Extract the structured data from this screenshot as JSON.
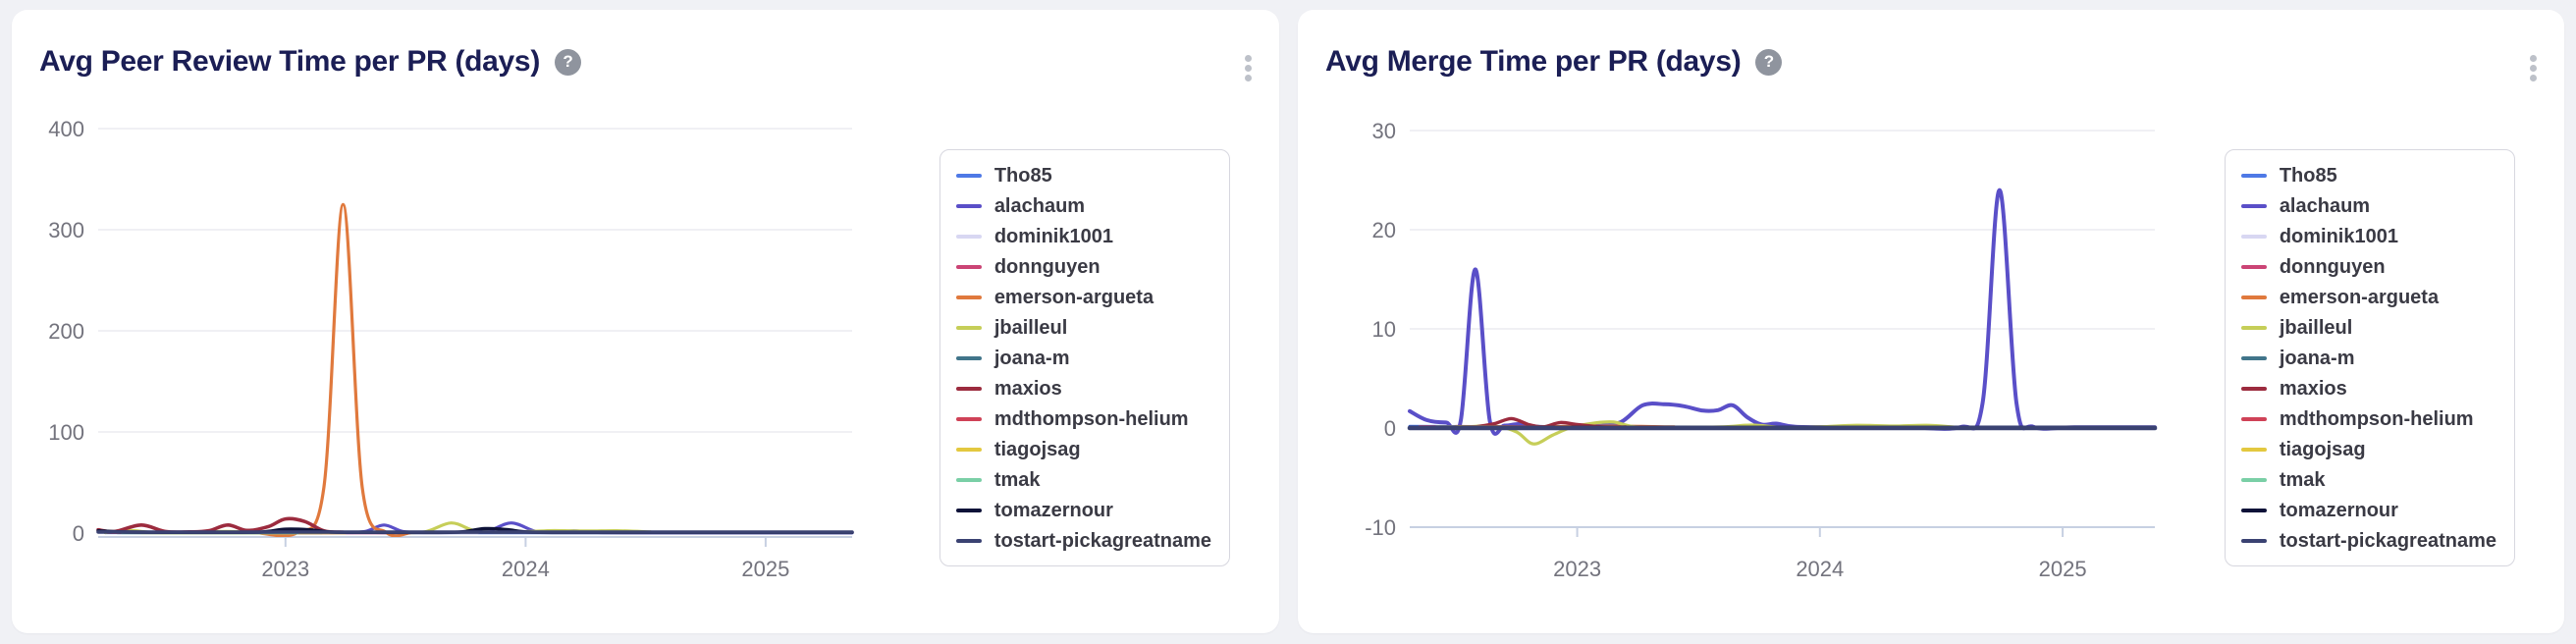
{
  "page": {
    "background": "#f0f1f5",
    "card_background": "#ffffff",
    "title_color": "#1b1e55"
  },
  "cards": [
    {
      "title": "Avg Peer Review Time per PR (days)",
      "help_label": "?",
      "icons": {
        "help": "question-circle-icon",
        "menu": "kebab-menu-icon"
      }
    },
    {
      "title": "Avg Merge Time per PR (days)",
      "help_label": "?",
      "icons": {
        "help": "question-circle-icon",
        "menu": "kebab-menu-icon"
      }
    }
  ],
  "chart_data": [
    {
      "type": "line",
      "title": "Avg Peer Review Time per PR (days)",
      "xlabel": "",
      "ylabel": "",
      "grid": true,
      "legend_position": "right",
      "x_ticks": [
        "2023",
        "2024",
        "2025"
      ],
      "x_tick_values": [
        2023,
        2024,
        2025
      ],
      "x_range": [
        2022.22,
        2025.36
      ],
      "y_ticks": [
        0,
        100,
        200,
        300,
        400
      ],
      "y_range": [
        0,
        400
      ],
      "series": [
        {
          "name": "Tho85",
          "color": "#4e79e6",
          "width": 3,
          "points": [
            [
              2022.25,
              0.4
            ],
            [
              2022.7,
              0.3
            ],
            [
              2023.2,
              0.3
            ],
            [
              2023.7,
              0.25
            ],
            [
              2024.2,
              0.25
            ],
            [
              2024.8,
              0.25
            ],
            [
              2025.36,
              0.25
            ]
          ]
        },
        {
          "name": "alachaum",
          "color": "#5a4fc8",
          "width": 3.2,
          "points": [
            [
              2022.25,
              0.6
            ],
            [
              2022.6,
              0.45
            ],
            [
              2022.95,
              0.5
            ],
            [
              2023.22,
              0.45
            ],
            [
              2023.33,
              1.5
            ],
            [
              2023.41,
              8
            ],
            [
              2023.49,
              1.5
            ],
            [
              2023.58,
              0.5
            ],
            [
              2023.72,
              0.6
            ],
            [
              2023.84,
              1.8
            ],
            [
              2023.94,
              10
            ],
            [
              2024.04,
              1.8
            ],
            [
              2024.12,
              0.8
            ],
            [
              2024.2,
              2.2
            ],
            [
              2024.3,
              0.6
            ],
            [
              2024.6,
              0.35
            ],
            [
              2025.0,
              0.35
            ],
            [
              2025.36,
              0.35
            ]
          ]
        },
        {
          "name": "dominik1001",
          "color": "#d8d7f2",
          "width": 3,
          "points": [
            [
              2022.3,
              0.35
            ],
            [
              2022.8,
              0.3
            ],
            [
              2023.3,
              0.25
            ],
            [
              2023.8,
              0.25
            ]
          ]
        },
        {
          "name": "donnguyen",
          "color": "#cb4475",
          "width": 3,
          "points": [
            [
              2022.28,
              0.45
            ],
            [
              2022.7,
              0.35
            ],
            [
              2023.1,
              0.3
            ],
            [
              2023.45,
              0.3
            ]
          ]
        },
        {
          "name": "emerson-argueta",
          "color": "#e0793d",
          "width": 3.2,
          "points": [
            [
              2022.88,
              0.4
            ],
            [
              2023.05,
              0.6
            ],
            [
              2023.16,
              45
            ],
            [
              2023.24,
              325
            ],
            [
              2023.32,
              45
            ],
            [
              2023.42,
              0.6
            ],
            [
              2023.52,
              0.4
            ]
          ]
        },
        {
          "name": "jbailleul",
          "color": "#c6ce58",
          "width": 3.2,
          "points": [
            [
              2022.25,
              0.5
            ],
            [
              2022.35,
              2.5
            ],
            [
              2022.45,
              0.6
            ],
            [
              2022.6,
              0.5
            ],
            [
              2022.75,
              1.6
            ],
            [
              2022.9,
              0.6
            ],
            [
              2023.03,
              3.5
            ],
            [
              2023.13,
              1.2
            ],
            [
              2023.28,
              0.8
            ],
            [
              2023.45,
              0.9
            ],
            [
              2023.58,
              1.2
            ],
            [
              2023.69,
              10
            ],
            [
              2023.79,
              2.2
            ],
            [
              2023.9,
              0.9
            ],
            [
              2024.02,
              1.6
            ],
            [
              2024.12,
              2.4
            ],
            [
              2024.25,
              2.0
            ],
            [
              2024.38,
              2.3
            ],
            [
              2024.52,
              1.2
            ]
          ]
        },
        {
          "name": "joana-m",
          "color": "#41758a",
          "width": 3,
          "points": [
            [
              2022.3,
              0.35
            ],
            [
              2022.75,
              0.3
            ],
            [
              2023.15,
              0.28
            ]
          ]
        },
        {
          "name": "maxios",
          "color": "#9c2b3e",
          "width": 3.6,
          "points": [
            [
              2022.22,
              3.2
            ],
            [
              2022.29,
              1.6
            ],
            [
              2022.4,
              8
            ],
            [
              2022.5,
              1.6
            ],
            [
              2022.6,
              1.2
            ],
            [
              2022.68,
              2.2
            ],
            [
              2022.76,
              8
            ],
            [
              2022.84,
              2.6
            ],
            [
              2022.93,
              6.5
            ],
            [
              2023.0,
              14
            ],
            [
              2023.08,
              11.5
            ],
            [
              2023.16,
              2.2
            ],
            [
              2023.24,
              0.8
            ]
          ]
        },
        {
          "name": "mdthompson-helium",
          "color": "#cf4257",
          "width": 3,
          "points": [
            [
              2022.26,
              0.7
            ],
            [
              2022.55,
              0.45
            ],
            [
              2022.9,
              0.4
            ],
            [
              2023.2,
              0.35
            ]
          ]
        },
        {
          "name": "tiagojsag",
          "color": "#e3c83f",
          "width": 3,
          "points": [
            [
              2022.4,
              0.35
            ],
            [
              2022.85,
              0.3
            ],
            [
              2023.25,
              0.25
            ]
          ]
        },
        {
          "name": "tmak",
          "color": "#7acfa6",
          "width": 3,
          "points": [
            [
              2022.32,
              0.35
            ],
            [
              2022.7,
              0.3
            ],
            [
              2023.05,
              0.25
            ]
          ]
        },
        {
          "name": "tomazernour",
          "color": "#0e1238",
          "width": 3.4,
          "points": [
            [
              2022.22,
              2.2
            ],
            [
              2022.33,
              1.0
            ],
            [
              2022.5,
              0.7
            ],
            [
              2022.72,
              0.7
            ],
            [
              2022.9,
              1.1
            ],
            [
              2023.0,
              3.8
            ],
            [
              2023.1,
              3.2
            ],
            [
              2023.2,
              0.9
            ],
            [
              2023.35,
              0.65
            ],
            [
              2023.55,
              0.6
            ],
            [
              2023.72,
              0.9
            ],
            [
              2023.83,
              4.4
            ],
            [
              2023.92,
              3.4
            ],
            [
              2024.02,
              0.9
            ],
            [
              2024.2,
              0.6
            ],
            [
              2024.5,
              0.6
            ],
            [
              2024.9,
              0.6
            ],
            [
              2025.36,
              0.6
            ]
          ]
        },
        {
          "name": "tostart-pickagreatname",
          "color": "#3a4272",
          "width": 3.6,
          "points": [
            [
              2022.22,
              1.1
            ],
            [
              2022.6,
              0.9
            ],
            [
              2023.0,
              1.0
            ],
            [
              2023.5,
              0.9
            ],
            [
              2024.0,
              0.9
            ],
            [
              2024.5,
              0.9
            ],
            [
              2025.0,
              0.9
            ],
            [
              2025.36,
              0.9
            ]
          ]
        }
      ]
    },
    {
      "type": "line",
      "title": "Avg Merge Time per PR (days)",
      "xlabel": "",
      "ylabel": "",
      "grid": true,
      "legend_position": "right",
      "x_ticks": [
        "2023",
        "2024",
        "2025"
      ],
      "x_tick_values": [
        2023,
        2024,
        2025
      ],
      "x_range": [
        2022.31,
        2025.38
      ],
      "y_ticks": [
        -10,
        0,
        10,
        20,
        30
      ],
      "y_range": [
        -10,
        30
      ],
      "series": [
        {
          "name": "Tho85",
          "color": "#4e79e6",
          "width": 3,
          "points": [
            [
              2022.31,
              0.18
            ],
            [
              2022.9,
              0.12
            ],
            [
              2023.5,
              0.1
            ],
            [
              2024.2,
              0.1
            ],
            [
              2025.38,
              0.1
            ]
          ]
        },
        {
          "name": "alachaum",
          "color": "#5a4fc8",
          "width": 4,
          "points": [
            [
              2022.31,
              1.7
            ],
            [
              2022.38,
              0.8
            ],
            [
              2022.46,
              0.55
            ],
            [
              2022.52,
              0.7
            ],
            [
              2022.58,
              16
            ],
            [
              2022.64,
              0.7
            ],
            [
              2022.7,
              0.25
            ],
            [
              2022.76,
              0.4
            ],
            [
              2022.84,
              0.12
            ],
            [
              2022.95,
              0.1
            ],
            [
              2023.08,
              0.2
            ],
            [
              2023.18,
              0.6
            ],
            [
              2023.27,
              2.3
            ],
            [
              2023.36,
              2.4
            ],
            [
              2023.44,
              2.2
            ],
            [
              2023.52,
              1.75
            ],
            [
              2023.58,
              1.8
            ],
            [
              2023.64,
              2.3
            ],
            [
              2023.7,
              1.1
            ],
            [
              2023.76,
              0.35
            ],
            [
              2023.82,
              0.45
            ],
            [
              2023.9,
              0.12
            ],
            [
              2024.1,
              0.08
            ],
            [
              2024.35,
              0.08
            ],
            [
              2024.58,
              0.1
            ],
            [
              2024.67,
              2.5
            ],
            [
              2024.74,
              24
            ],
            [
              2024.81,
              2.5
            ],
            [
              2024.88,
              0.12
            ],
            [
              2025.05,
              0.08
            ],
            [
              2025.38,
              0.08
            ]
          ]
        },
        {
          "name": "dominik1001",
          "color": "#d8d7f2",
          "width": 3,
          "points": [
            [
              2022.35,
              0.12
            ],
            [
              2022.9,
              0.1
            ],
            [
              2023.4,
              0.08
            ]
          ]
        },
        {
          "name": "donnguyen",
          "color": "#cb4475",
          "width": 3,
          "points": [
            [
              2022.35,
              0.14
            ],
            [
              2022.85,
              0.1
            ],
            [
              2023.3,
              0.1
            ]
          ]
        },
        {
          "name": "emerson-argueta",
          "color": "#e0793d",
          "width": 3,
          "points": [
            [
              2022.9,
              0.15
            ],
            [
              2023.15,
              0.2
            ],
            [
              2023.4,
              0.12
            ]
          ]
        },
        {
          "name": "jbailleul",
          "color": "#c6ce58",
          "width": 3.2,
          "points": [
            [
              2022.55,
              0.12
            ],
            [
              2022.66,
              0.2
            ],
            [
              2022.75,
              -0.4
            ],
            [
              2022.82,
              -1.6
            ],
            [
              2022.9,
              -0.7
            ],
            [
              2022.98,
              0.1
            ],
            [
              2023.07,
              0.5
            ],
            [
              2023.15,
              0.6
            ],
            [
              2023.24,
              0.12
            ],
            [
              2023.4,
              0.06
            ],
            [
              2023.6,
              0.12
            ],
            [
              2023.72,
              0.3
            ],
            [
              2023.85,
              0.06
            ],
            [
              2024.0,
              0.12
            ],
            [
              2024.15,
              0.28
            ],
            [
              2024.3,
              0.2
            ],
            [
              2024.44,
              0.28
            ],
            [
              2024.55,
              0.1
            ]
          ]
        },
        {
          "name": "joana-m",
          "color": "#41758a",
          "width": 3,
          "points": [
            [
              2022.4,
              0.1
            ],
            [
              2022.95,
              0.08
            ],
            [
              2023.4,
              0.08
            ]
          ]
        },
        {
          "name": "maxios",
          "color": "#9c2b3e",
          "width": 3.4,
          "points": [
            [
              2022.58,
              0.1
            ],
            [
              2022.66,
              0.45
            ],
            [
              2022.73,
              0.95
            ],
            [
              2022.8,
              0.35
            ],
            [
              2022.86,
              0.12
            ],
            [
              2022.93,
              0.55
            ],
            [
              2023.0,
              0.35
            ],
            [
              2023.1,
              0.12
            ],
            [
              2023.2,
              0.1
            ]
          ]
        },
        {
          "name": "mdthompson-helium",
          "color": "#cf4257",
          "width": 3,
          "points": [
            [
              2022.5,
              0.16
            ],
            [
              2022.95,
              0.1
            ],
            [
              2023.35,
              0.1
            ]
          ]
        },
        {
          "name": "tiagojsag",
          "color": "#e3c83f",
          "width": 3,
          "points": [
            [
              2022.5,
              0.12
            ],
            [
              2023.05,
              0.08
            ]
          ]
        },
        {
          "name": "tmak",
          "color": "#7acfa6",
          "width": 3,
          "points": [
            [
              2022.42,
              0.12
            ],
            [
              2022.85,
              0.08
            ]
          ]
        },
        {
          "name": "tomazernour",
          "color": "#0e1238",
          "width": 3.6,
          "points": [
            [
              2022.31,
              0.06
            ],
            [
              2023.0,
              0.06
            ],
            [
              2024.0,
              0.06
            ],
            [
              2025.38,
              0.06
            ]
          ]
        },
        {
          "name": "tostart-pickagreatname",
          "color": "#3a4272",
          "width": 4.6,
          "points": [
            [
              2022.31,
              0.0
            ],
            [
              2023.0,
              0.0
            ],
            [
              2024.0,
              0.0
            ],
            [
              2025.38,
              0.0
            ]
          ]
        }
      ]
    }
  ]
}
